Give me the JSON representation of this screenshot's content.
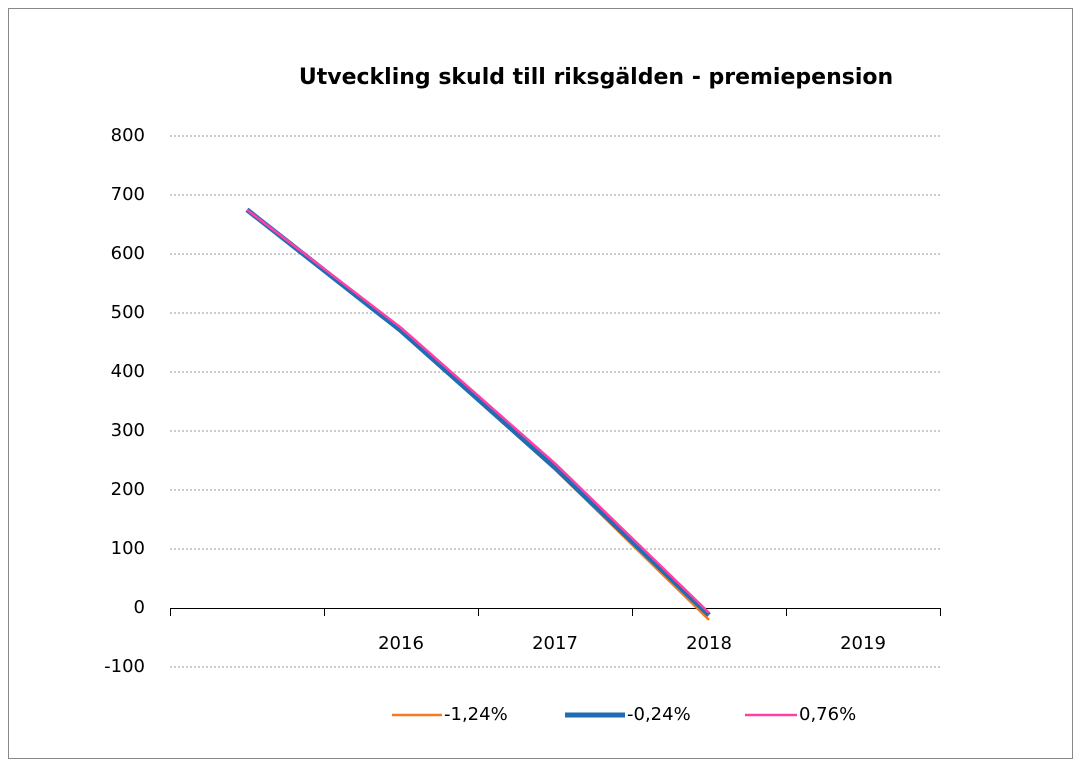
{
  "chart_data": {
    "type": "line",
    "title": "Utveckling skuld till riksgälden - premiepension",
    "categories": [
      null,
      "2016",
      "2017",
      "2018",
      "2019"
    ],
    "series": [
      {
        "name": "-1,24%",
        "color": "#f47b20",
        "width": 2.5,
        "values": [
          675,
          468,
          235,
          -20,
          null
        ]
      },
      {
        "name": "-0,24%",
        "color": "#1f6db4",
        "width": 5,
        "values": [
          675,
          470,
          238,
          -12,
          null
        ]
      },
      {
        "name": "0,76%",
        "color": "#ff3fa6",
        "width": 2.5,
        "values": [
          675,
          475,
          245,
          -8,
          null
        ]
      }
    ],
    "ylim": [
      -100,
      800
    ],
    "yticks": [
      -100,
      0,
      100,
      200,
      300,
      400,
      500,
      600,
      700,
      800
    ],
    "grid": true,
    "legend": "bottom"
  }
}
